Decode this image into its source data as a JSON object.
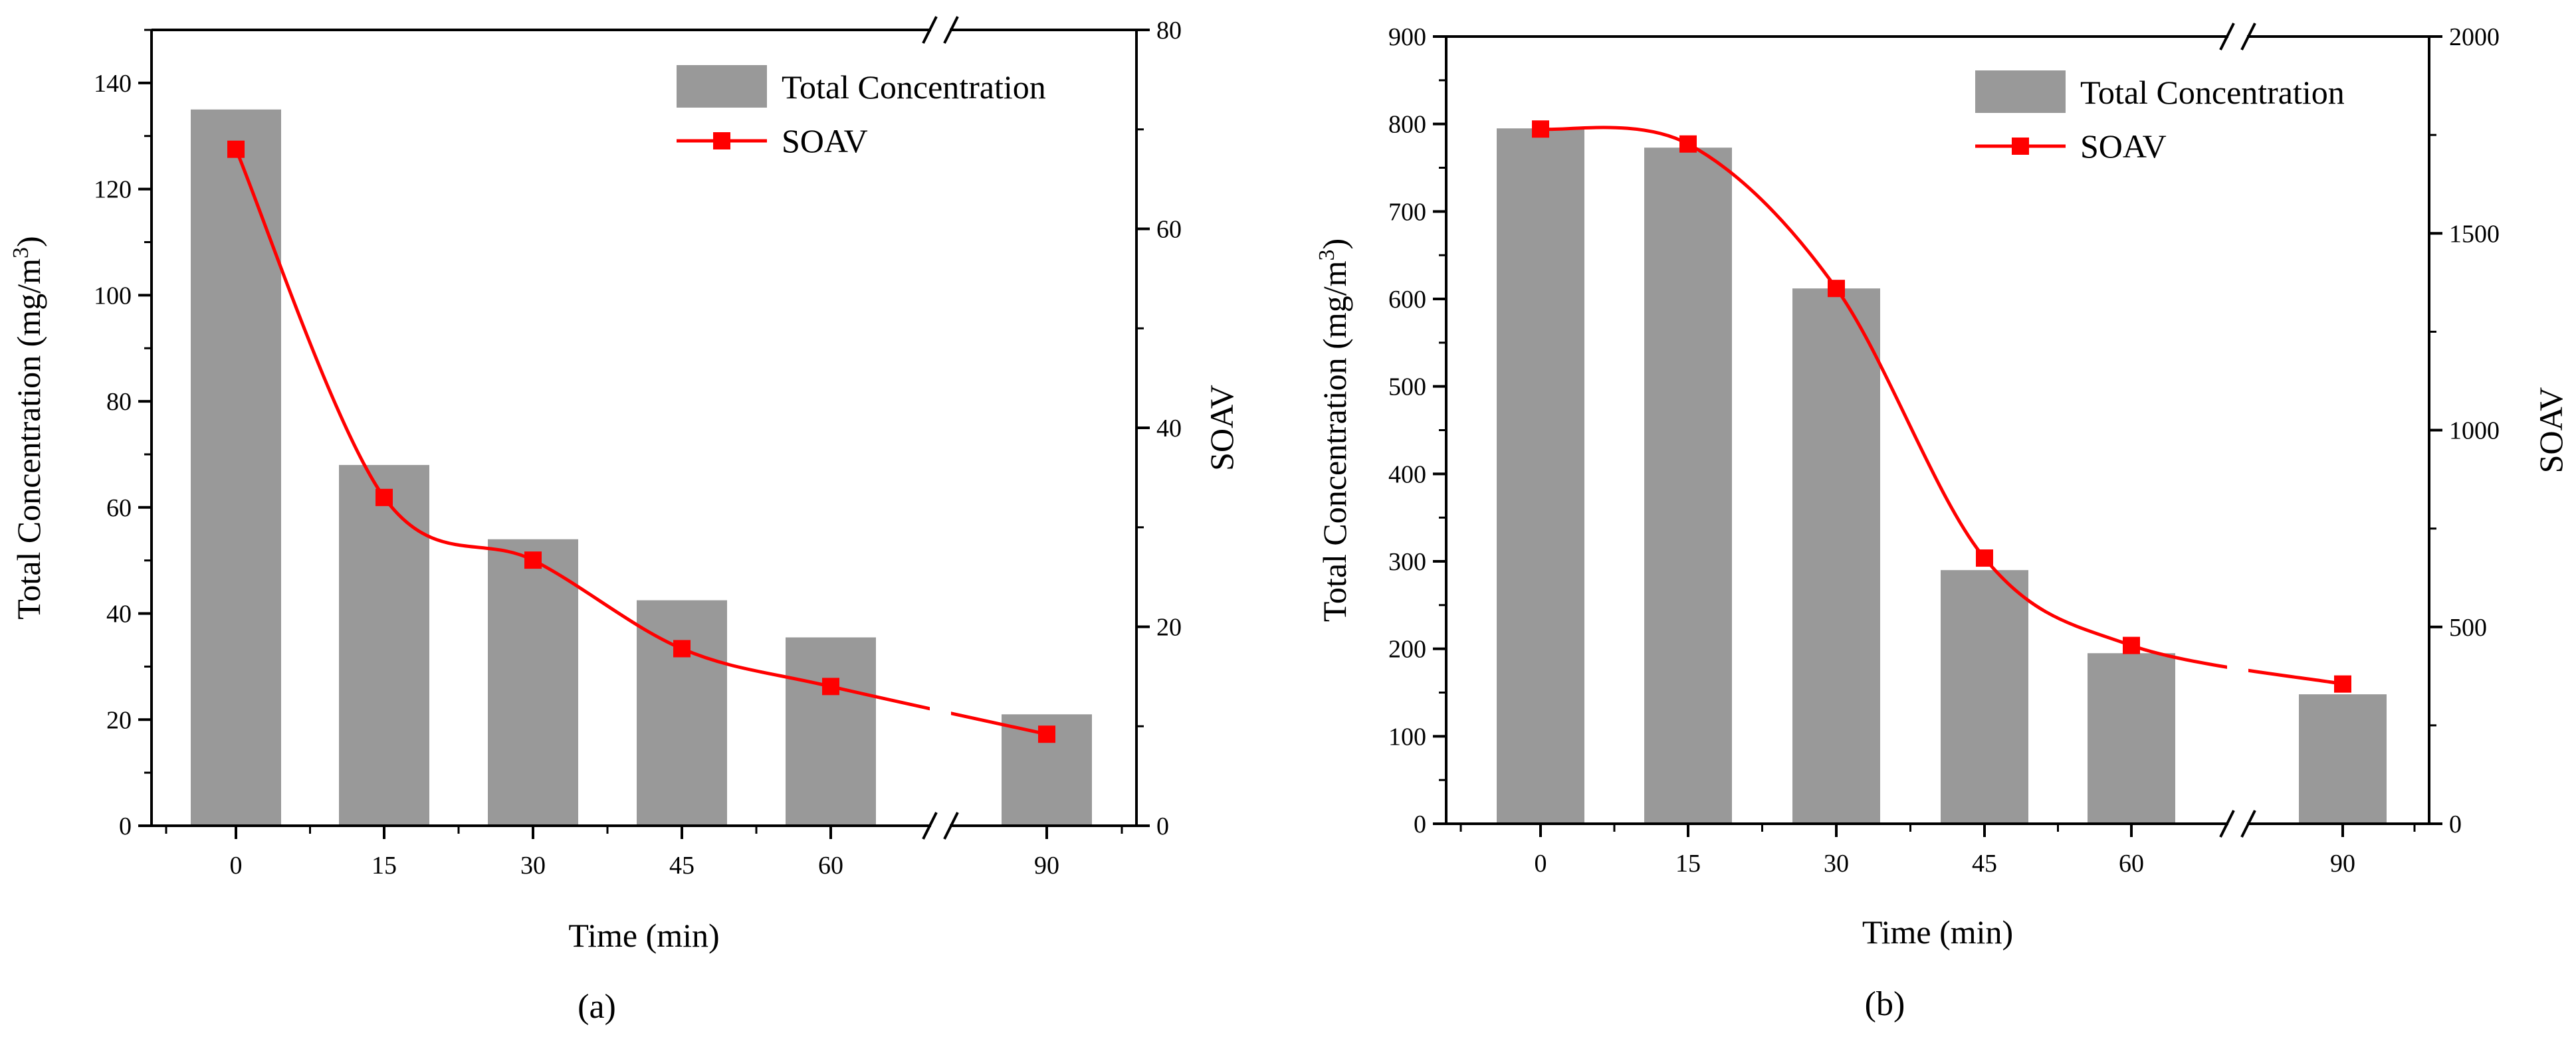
{
  "chart_data": [
    {
      "type": "bar",
      "panel": "a",
      "caption": "(a)",
      "categories": [
        "0",
        "15",
        "30",
        "45",
        "60",
        "90"
      ],
      "series": [
        {
          "name": "Total Concentration",
          "axis": "left",
          "kind": "bar",
          "color": "#999999",
          "values": [
            135,
            68,
            54,
            42.5,
            35.5,
            21
          ]
        },
        {
          "name": "SOAV",
          "axis": "right",
          "kind": "line",
          "color": "#ff0000",
          "values": [
            68,
            33,
            26.7,
            17.8,
            14,
            9.2
          ]
        }
      ],
      "xlabel": "Time (min)",
      "ylabel": "Total Concentration (mg/m³)",
      "ylabel_base": "Total Concentration (mg/m",
      "ylabel_sup": "3",
      "ylabel_end": ")",
      "y2label": "SOAV",
      "ylim": [
        0,
        150
      ],
      "yticks": [
        0,
        20,
        40,
        60,
        80,
        100,
        120,
        140
      ],
      "y2lim": [
        0,
        80
      ],
      "y2ticks": [
        0,
        20,
        40,
        60,
        80
      ],
      "axis_break": "between 60 and 90",
      "legend_position": "top-right"
    },
    {
      "type": "bar",
      "panel": "b",
      "caption": "(b)",
      "categories": [
        "0",
        "15",
        "30",
        "45",
        "60",
        "90"
      ],
      "series": [
        {
          "name": "Total Concentration",
          "axis": "left",
          "kind": "bar",
          "color": "#999999",
          "values": [
            795,
            773,
            612,
            290,
            195,
            148
          ]
        },
        {
          "name": "SOAV",
          "axis": "right",
          "kind": "line",
          "color": "#ff0000",
          "values": [
            1765,
            1727,
            1360,
            675,
            453,
            355
          ]
        }
      ],
      "xlabel": "Time (min)",
      "ylabel": "Total Concentration (mg/m³)",
      "ylabel_base": "Total Concentration (mg/m",
      "ylabel_sup": "3",
      "ylabel_end": ")",
      "y2label": "SOAV",
      "ylim": [
        0,
        900
      ],
      "yticks": [
        0,
        100,
        200,
        300,
        400,
        500,
        600,
        700,
        800,
        900
      ],
      "y2lim": [
        0,
        2000
      ],
      "y2ticks": [
        0,
        500,
        1000,
        1500,
        2000
      ],
      "axis_break": "between 60 and 90",
      "legend_position": "top-right"
    }
  ]
}
